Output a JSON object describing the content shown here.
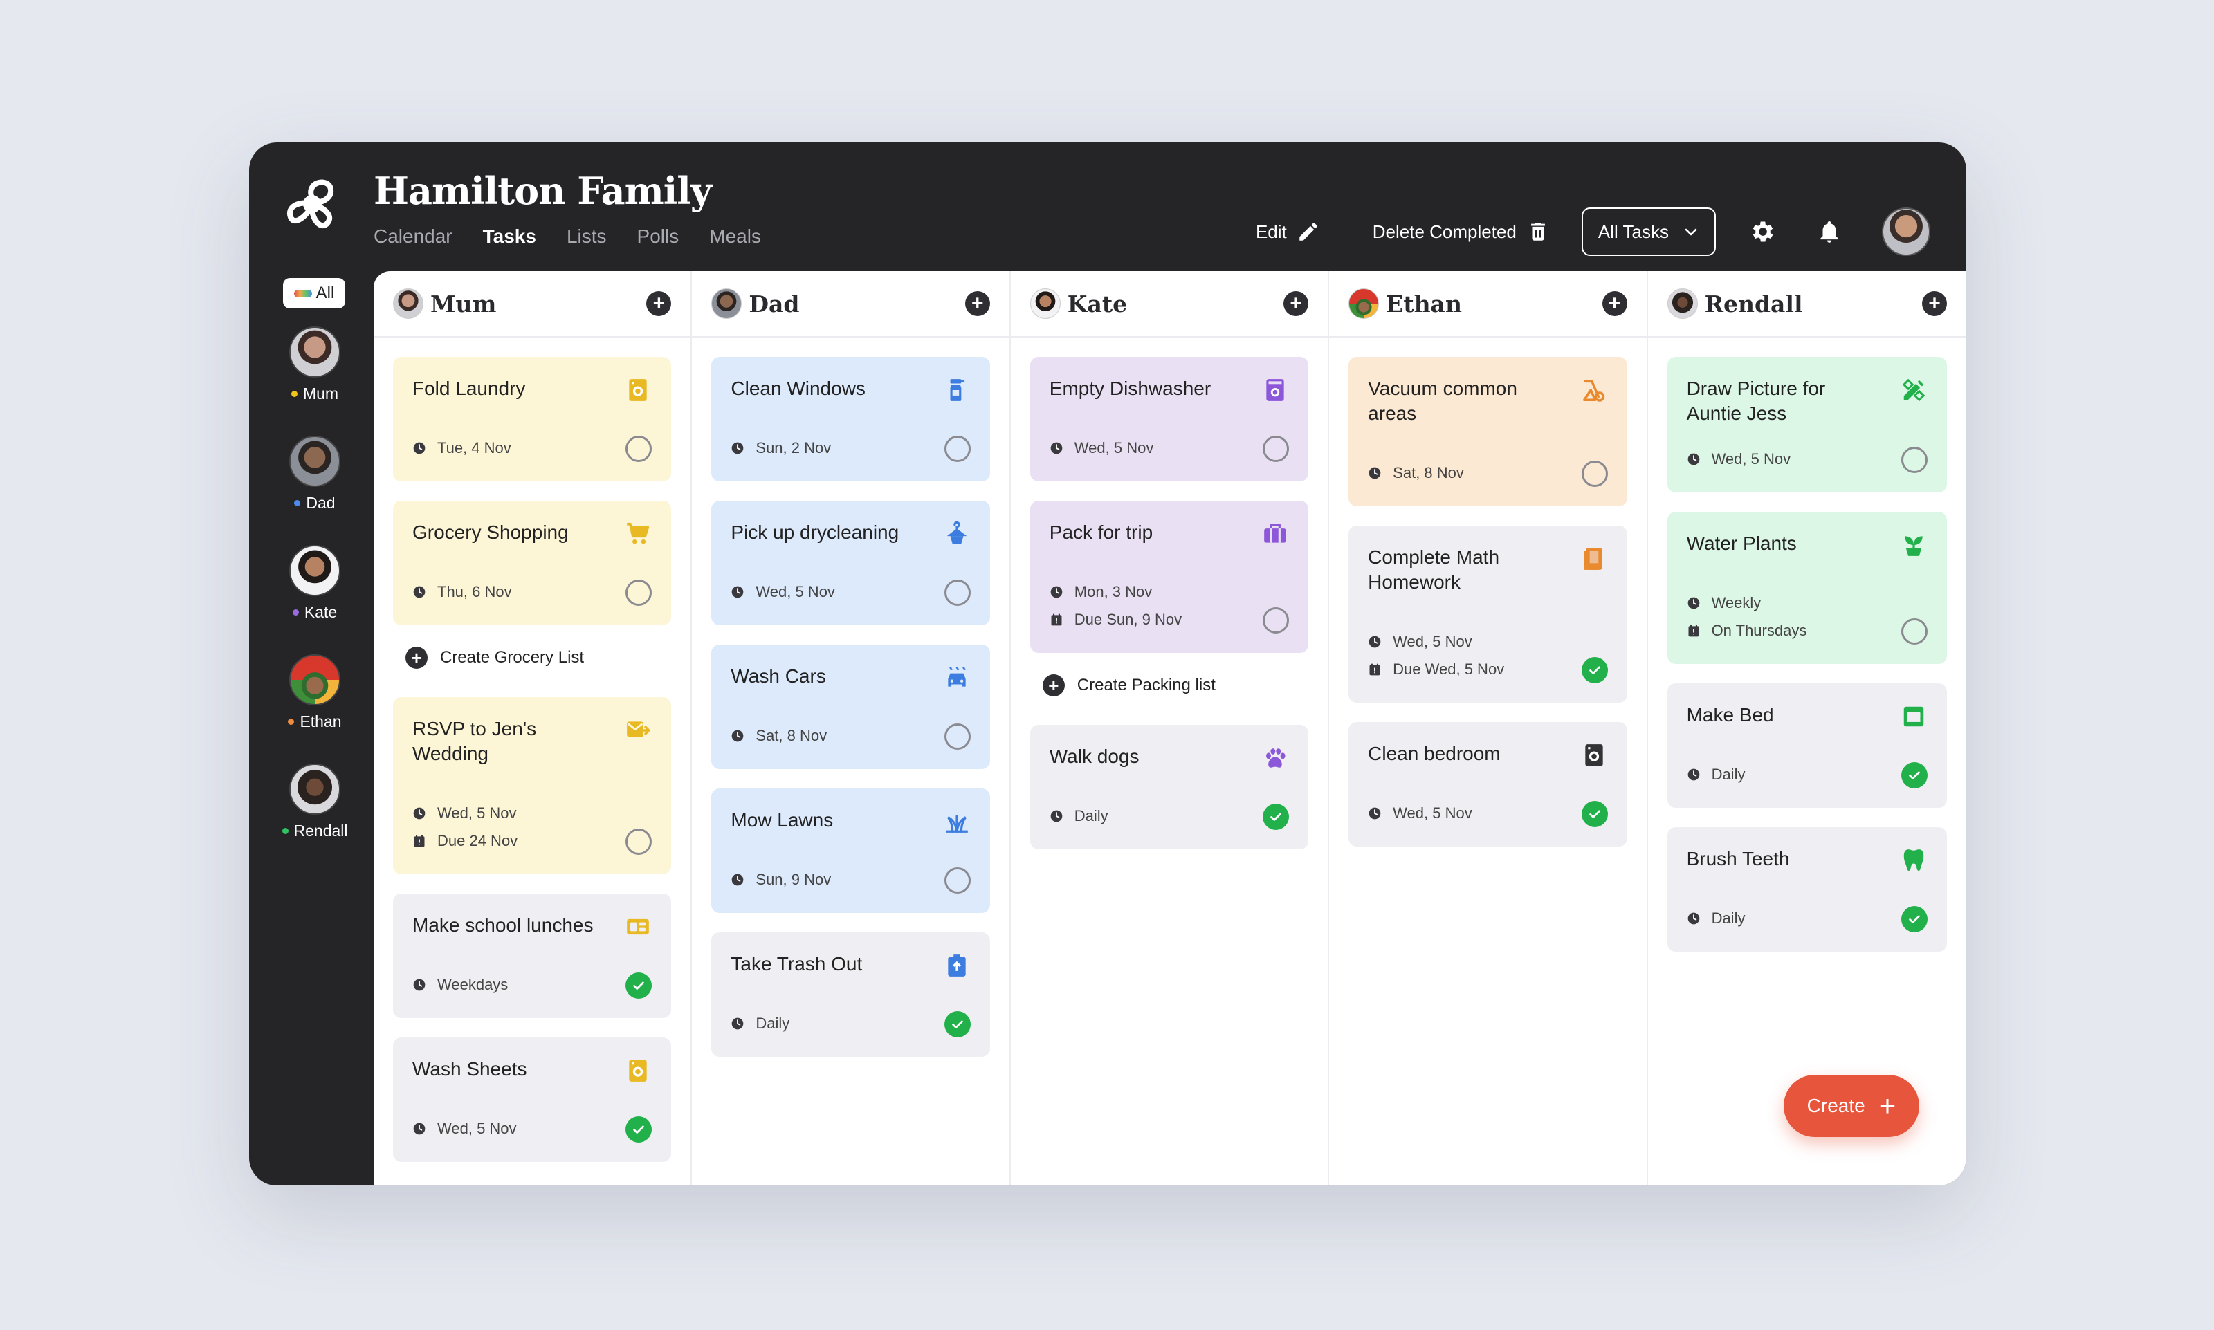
{
  "app": {
    "title": "Hamilton Family"
  },
  "nav": {
    "items": [
      "Calendar",
      "Tasks",
      "Lists",
      "Polls",
      "Meals"
    ],
    "active": "Tasks"
  },
  "toolbar": {
    "edit_label": "Edit",
    "delete_label": "Delete Completed",
    "filter_label": "All Tasks"
  },
  "sidebar": {
    "all_label": "All",
    "members": [
      {
        "name": "Mum",
        "color": "#f0c419"
      },
      {
        "name": "Dad",
        "color": "#4b8bf0"
      },
      {
        "name": "Kate",
        "color": "#9a6be0"
      },
      {
        "name": "Ethan",
        "color": "#f08a3c"
      },
      {
        "name": "Rendall",
        "color": "#2fc463"
      }
    ]
  },
  "columns": [
    {
      "name": "Mum",
      "cards": [
        {
          "title": "Fold Laundry",
          "icon": "washing-machine-icon",
          "color": "yellow",
          "meta": [
            {
              "icon": "clock",
              "text": "Tue, 4 Nov"
            }
          ],
          "done": false
        },
        {
          "title": "Grocery Shopping",
          "icon": "cart-icon",
          "color": "yellow",
          "meta": [
            {
              "icon": "clock",
              "text": "Thu, 6 Nov"
            }
          ],
          "done": false
        },
        {
          "type": "create",
          "label": "Create Grocery List"
        },
        {
          "title": "RSVP to Jen's Wedding",
          "icon": "mail-icon",
          "color": "yellow",
          "meta": [
            {
              "icon": "clock",
              "text": "Wed, 5 Nov"
            },
            {
              "icon": "calendar",
              "text": "Due 24 Nov"
            }
          ],
          "done": false
        },
        {
          "title": "Make school lunches",
          "icon": "lunchbox-icon",
          "color": "gray",
          "meta": [
            {
              "icon": "clock",
              "text": "Weekdays"
            }
          ],
          "done": true
        },
        {
          "title": "Wash Sheets",
          "icon": "washing-machine-icon",
          "color": "gray",
          "meta": [
            {
              "icon": "clock",
              "text": "Wed, 5 Nov"
            }
          ],
          "done": true
        }
      ]
    },
    {
      "name": "Dad",
      "cards": [
        {
          "title": "Clean Windows",
          "icon": "spray-bottle-icon",
          "color": "blue",
          "meta": [
            {
              "icon": "clock",
              "text": "Sun, 2 Nov"
            }
          ],
          "done": false
        },
        {
          "title": "Pick up drycleaning",
          "icon": "hanger-icon",
          "color": "blue",
          "meta": [
            {
              "icon": "clock",
              "text": "Wed, 5 Nov"
            }
          ],
          "done": false
        },
        {
          "title": "Wash Cars",
          "icon": "car-wash-icon",
          "color": "blue",
          "meta": [
            {
              "icon": "clock",
              "text": "Sat, 8 Nov"
            }
          ],
          "done": false
        },
        {
          "title": "Mow Lawns",
          "icon": "grass-icon",
          "color": "blue",
          "meta": [
            {
              "icon": "clock",
              "text": "Sun, 9 Nov"
            }
          ],
          "done": false
        },
        {
          "title": "Take Trash Out",
          "icon": "trash-bin-icon",
          "color": "gray",
          "meta": [
            {
              "icon": "clock",
              "text": "Daily"
            }
          ],
          "done": true
        }
      ]
    },
    {
      "name": "Kate",
      "cards": [
        {
          "title": "Empty Dishwasher",
          "icon": "dishwasher-icon",
          "color": "purple",
          "meta": [
            {
              "icon": "clock",
              "text": "Wed, 5 Nov"
            }
          ],
          "done": false
        },
        {
          "title": "Pack for trip",
          "icon": "luggage-icon",
          "color": "purple",
          "meta": [
            {
              "icon": "clock",
              "text": "Mon, 3 Nov"
            },
            {
              "icon": "calendar",
              "text": "Due Sun, 9 Nov"
            }
          ],
          "done": false
        },
        {
          "type": "create",
          "label": "Create Packing list"
        },
        {
          "title": "Walk dogs",
          "icon": "paw-icon",
          "color": "gray",
          "meta": [
            {
              "icon": "clock",
              "text": "Daily"
            }
          ],
          "done": true
        }
      ]
    },
    {
      "name": "Ethan",
      "cards": [
        {
          "title": "Vacuum common areas",
          "icon": "vacuum-icon",
          "color": "orange",
          "meta": [
            {
              "icon": "clock",
              "text": "Sat, 8 Nov"
            }
          ],
          "done": false
        },
        {
          "title": "Complete Math Homework",
          "icon": "book-icon",
          "color": "gray",
          "meta": [
            {
              "icon": "clock",
              "text": "Wed, 5 Nov"
            },
            {
              "icon": "calendar",
              "text": "Due Wed, 5 Nov"
            }
          ],
          "done": true
        },
        {
          "title": "Clean bedroom",
          "icon": "washing-machine-icon",
          "color": "gray",
          "meta": [
            {
              "icon": "clock",
              "text": "Wed, 5 Nov"
            }
          ],
          "done": true
        }
      ]
    },
    {
      "name": "Rendall",
      "cards": [
        {
          "title": "Draw Picture for Auntie Jess",
          "icon": "pencil-ruler-icon",
          "color": "green",
          "meta": [
            {
              "icon": "clock",
              "text": "Wed, 5 Nov"
            }
          ],
          "done": false
        },
        {
          "title": "Water Plants",
          "icon": "plant-icon",
          "color": "green",
          "meta": [
            {
              "icon": "clock",
              "text": "Weekly"
            },
            {
              "icon": "calendar",
              "text": "On Thursdays"
            }
          ],
          "done": false
        },
        {
          "title": "Make Bed",
          "icon": "bed-icon",
          "color": "gray",
          "meta": [
            {
              "icon": "clock",
              "text": "Daily"
            }
          ],
          "done": true
        },
        {
          "title": "Brush Teeth",
          "icon": "tooth-icon",
          "color": "gray",
          "meta": [
            {
              "icon": "clock",
              "text": "Daily"
            }
          ],
          "done": true
        }
      ]
    }
  ],
  "fab": {
    "label": "Create"
  }
}
